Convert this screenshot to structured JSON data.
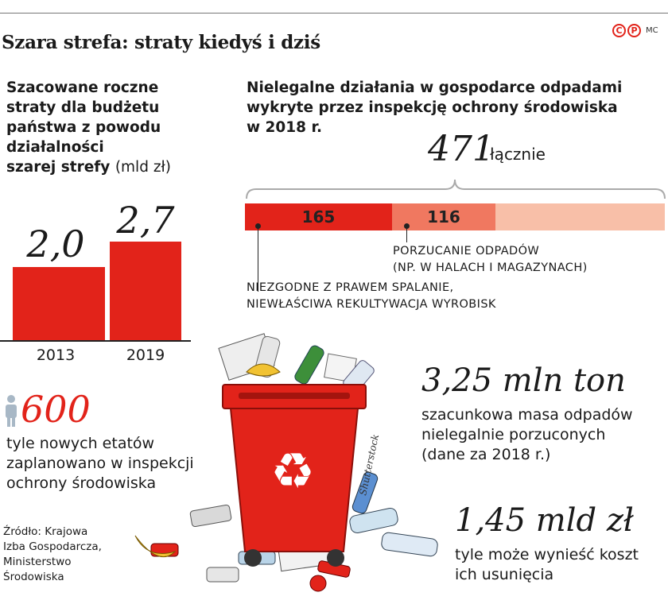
{
  "header": {
    "title": "Szara strefa: straty kiedyś i dziś",
    "logo_letters": [
      "C",
      "P"
    ],
    "logo_text": "MC",
    "colors": {
      "red": "#e2231a",
      "orange": "#f07860",
      "peach": "#f8bfa8"
    }
  },
  "losses": {
    "lead_lines": [
      "Szacowane roczne",
      "straty dla budżetu",
      "państwa z powodu",
      "działalności",
      "szarej strefy"
    ],
    "unit": "(mld zł)",
    "value_labels": [
      "2,0",
      "2,7"
    ]
  },
  "violations": {
    "lead_lines": [
      "Nielegalne działania w gospodarce odpadami",
      "wykryte przez inspekcję ochrony środowiska",
      "w 2018 r."
    ],
    "total": "471",
    "total_label": "łącznie",
    "segment_labels": [
      "165",
      "116"
    ],
    "caption_porzucanie": [
      "PORZUCANIE ODPADÓW",
      "(NP. W HALACH I MAGAZYNACH)"
    ],
    "caption_spalanie": [
      "NIEZGODNE Z PRAWEM SPALANIE,",
      "NIEWŁAŚCIWA REKULTYWACJA WYROBISK"
    ]
  },
  "stats": {
    "jobs_value": "600",
    "jobs_text": [
      "tyle nowych etatów",
      "zaplanowano w inspekcji",
      "ochrony środowiska"
    ],
    "mass_value": "3,25 mln ton",
    "mass_text": [
      "szacunkowa masa odpadów",
      "nielegalnie porzuconych",
      "(dane za 2018 r.)"
    ],
    "cost_value": "1,45 mld zł",
    "cost_text": [
      "tyle może wynieść koszt",
      "ich usunięcia"
    ]
  },
  "source": [
    "Źródło: Krajowa",
    "Izba Gospodarcza,",
    "Ministerstwo",
    "Środowiska"
  ],
  "photo_credit": "Shutterstock",
  "chart_data": [
    {
      "type": "bar",
      "categories": [
        "2013",
        "2019"
      ],
      "values": [
        2.0,
        2.7
      ],
      "ylim": [
        0,
        2.7
      ]
    },
    {
      "type": "bar",
      "orientation": "horizontal-stacked",
      "total": 471,
      "series": [
        {
          "name": "NIEZGODNE Z PRAWEM SPALANIE, NIEWŁAŚCIWA REKULTYWACJA WYROBISK",
          "value": 165
        },
        {
          "name": "PORZUCANIE ODPADÓW (NP. W HALACH I MAGAZYNACH)",
          "value": 116
        },
        {
          "value": 190
        }
      ]
    }
  ]
}
